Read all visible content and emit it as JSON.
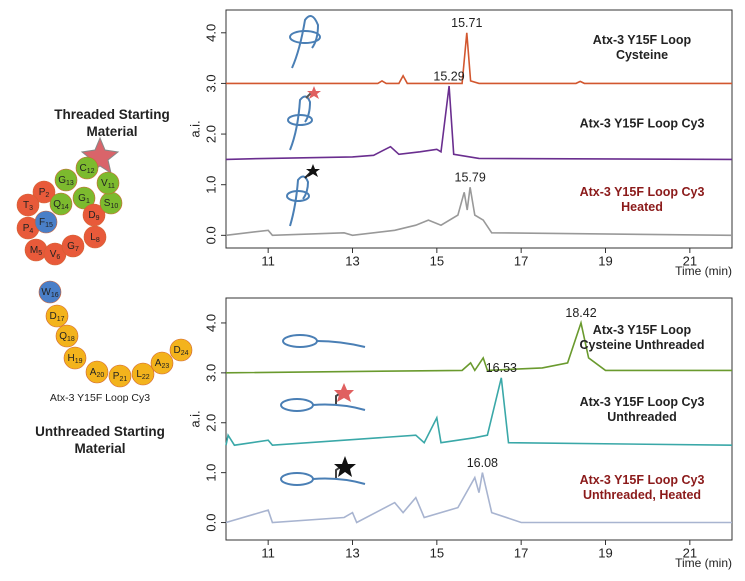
{
  "chart_data": [
    {
      "type": "line",
      "ylabel": "a.i.",
      "xlabel": "Time (min)",
      "xlim": [
        10,
        22
      ],
      "xticks": [
        11,
        13,
        15,
        17,
        19,
        21
      ],
      "ylim": [
        -0.25,
        4.45
      ],
      "yticks": [
        {
          "value": 0,
          "label": "0.0"
        },
        {
          "value": 1,
          "label": "1.0"
        },
        {
          "value": 2,
          "label": "2.0"
        },
        {
          "value": 3,
          "label": "3.0"
        },
        {
          "value": 4,
          "label": "4.0"
        }
      ],
      "series": [
        {
          "name": "Atx-3 Y15F Loop Cysteine",
          "color": "#d2572f",
          "label_color": "#222222",
          "peak": 15.71,
          "x": [
            10,
            13.6,
            13.7,
            13.8,
            14.1,
            14.2,
            14.3,
            15.6,
            15.71,
            15.8,
            16,
            18.3,
            18.4,
            18.5,
            22
          ],
          "values": [
            3.0,
            3.0,
            3.05,
            3.0,
            3.0,
            3.15,
            3.0,
            3.0,
            4.0,
            3.05,
            3.0,
            3.0,
            3.04,
            3.0,
            3.0
          ]
        },
        {
          "name": "Atx-3 Y15F Loop Cy3",
          "color": "#6a2e8f",
          "label_color": "#222222",
          "peak": 15.29,
          "x": [
            10,
            11,
            13,
            13.5,
            13.9,
            14.1,
            14.6,
            15.0,
            15.1,
            15.29,
            15.4,
            16,
            22
          ],
          "values": [
            1.5,
            1.52,
            1.55,
            1.58,
            1.75,
            1.6,
            1.65,
            1.7,
            1.65,
            2.95,
            1.6,
            1.52,
            1.5
          ]
        },
        {
          "name": "Atx-3 Y15F Loop Cy3 Heated",
          "color": "#999999",
          "label_color": "#8b1a1a",
          "peak": 15.79,
          "x": [
            10,
            11,
            11.1,
            12.8,
            13,
            14,
            14.5,
            14.8,
            15.1,
            15.5,
            15.65,
            15.72,
            15.79,
            15.9,
            16.1,
            16.3,
            22
          ],
          "values": [
            0,
            0.1,
            0,
            0.05,
            0,
            0.1,
            0.2,
            0.3,
            0.2,
            0.4,
            0.85,
            0.5,
            0.95,
            0.4,
            0.3,
            0.05,
            0
          ]
        }
      ]
    },
    {
      "type": "line",
      "ylabel": "a.i.",
      "xlabel": "Time (min)",
      "xlim": [
        10,
        22
      ],
      "xticks": [
        11,
        13,
        15,
        17,
        19,
        21
      ],
      "ylim": [
        -0.35,
        4.5
      ],
      "yticks": [
        {
          "value": 0,
          "label": "0.0"
        },
        {
          "value": 1,
          "label": "1.0"
        },
        {
          "value": 2,
          "label": "2.0"
        },
        {
          "value": 3,
          "label": "3.0"
        },
        {
          "value": 4,
          "label": "4.0"
        }
      ],
      "series": [
        {
          "name": "Atx-3 Y15F Loop Cysteine Unthreaded",
          "color": "#6a9a2e",
          "label_color": "#222222",
          "peak": 18.42,
          "x": [
            10,
            15.6,
            15.8,
            15.9,
            16.1,
            16.2,
            17.5,
            18.1,
            18.42,
            18.6,
            19,
            22
          ],
          "values": [
            3.0,
            3.05,
            3.2,
            3.05,
            3.3,
            3.05,
            3.1,
            3.2,
            4.0,
            3.3,
            3.05,
            3.05
          ]
        },
        {
          "name": "Atx-3 Y15F Loop Cy3 Unthreaded",
          "color": "#3aa8a8",
          "label_color": "#222222",
          "peak": 16.53,
          "x": [
            10,
            10.05,
            10.2,
            11,
            11.1,
            14.5,
            14.7,
            15.0,
            15.1,
            15.9,
            16.2,
            16.53,
            16.7,
            22
          ],
          "values": [
            1.55,
            1.75,
            1.55,
            1.65,
            1.55,
            1.75,
            1.6,
            2.1,
            1.6,
            1.7,
            1.75,
            2.9,
            1.6,
            1.55
          ]
        },
        {
          "name": "Atx-3 Y15F Loop Cy3 Unthreaded, Heated",
          "color": "#a8b4d0",
          "label_color": "#8b1a1a",
          "peak": 16.08,
          "x": [
            10,
            11,
            11.1,
            12.8,
            13,
            13.1,
            14,
            14.2,
            14.5,
            14.7,
            15.5,
            15.9,
            16.0,
            16.08,
            16.3,
            17,
            22
          ],
          "values": [
            0,
            0.25,
            0,
            0.1,
            0.2,
            0,
            0.4,
            0.2,
            0.5,
            0.1,
            0.3,
            0.9,
            0.6,
            1.0,
            0.2,
            0,
            0
          ]
        }
      ]
    }
  ],
  "diagram": {
    "threaded_label": "Threaded Starting Material",
    "construct_label": "Atx-3 Y15F Loop Cy3",
    "unthreaded_label": "Unthreaded Starting Material",
    "residues": [
      {
        "aa": "G",
        "n": 1
      },
      {
        "aa": "P",
        "n": 2
      },
      {
        "aa": "T",
        "n": 3
      },
      {
        "aa": "P",
        "n": 4
      },
      {
        "aa": "M",
        "n": 5
      },
      {
        "aa": "V",
        "n": 6
      },
      {
        "aa": "G",
        "n": 7
      },
      {
        "aa": "L",
        "n": 8
      },
      {
        "aa": "D",
        "n": 9
      },
      {
        "aa": "S",
        "n": 10
      },
      {
        "aa": "V",
        "n": 11
      },
      {
        "aa": "C",
        "n": 12
      },
      {
        "aa": "G",
        "n": 13
      },
      {
        "aa": "Q",
        "n": 14
      },
      {
        "aa": "F",
        "n": 15
      },
      {
        "aa": "W",
        "n": 16
      },
      {
        "aa": "D",
        "n": 17
      },
      {
        "aa": "Q",
        "n": 18
      },
      {
        "aa": "H",
        "n": 19
      },
      {
        "aa": "A",
        "n": 20
      },
      {
        "aa": "P",
        "n": 21
      },
      {
        "aa": "L",
        "n": 22
      },
      {
        "aa": "A",
        "n": 23
      },
      {
        "aa": "D",
        "n": 24
      }
    ]
  }
}
